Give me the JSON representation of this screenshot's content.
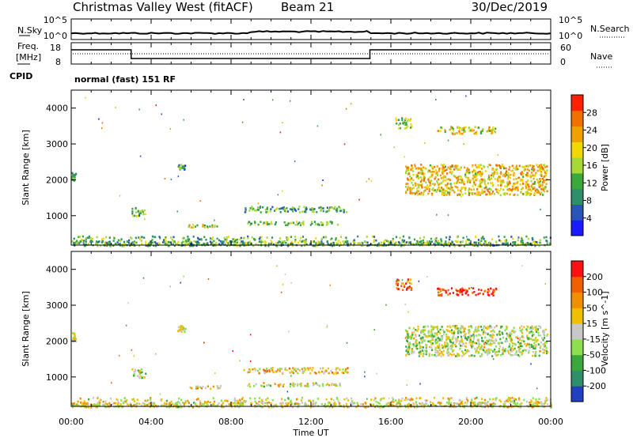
{
  "header": {
    "title": "Christmas Valley West (fitACF)",
    "beam": "Beam 21",
    "date": "30/Dec/2019"
  },
  "nsky": {
    "label": "N.Sky",
    "tick_top": "10^5",
    "tick_bottom": "10^0",
    "right_label": "N.Search",
    "right_tick_top": "10^5",
    "right_tick_bottom": "10^0"
  },
  "freq": {
    "label_line1": "Freq.",
    "label_line2": "[MHz]",
    "tick_top": "18",
    "tick_bottom": "8",
    "right_label": "Nave",
    "right_tick_top": "60",
    "right_tick_bottom": "0"
  },
  "cpid": {
    "label": "CPID",
    "value": "normal (fast) 151 RF"
  },
  "x_axis": {
    "label": "Time UT",
    "ticks": [
      "00:00",
      "04:00",
      "08:00",
      "12:00",
      "16:00",
      "20:00",
      "00:00"
    ]
  },
  "chart_data": [
    {
      "type": "heatmap",
      "panel": "power",
      "ylabel": "Slant Range [km]",
      "y_ticks": [
        1000,
        2000,
        3000,
        4000
      ],
      "ylim": [
        180,
        4500
      ],
      "xlim_hours": [
        0,
        24
      ],
      "colorbar": {
        "label": "Power [dB]",
        "ticks": [
          "4",
          "8",
          "12",
          "16",
          "20",
          "24",
          "28"
        ],
        "colors": [
          "#1a1aff",
          "#2a55b8",
          "#2f8f6a",
          "#3aa83a",
          "#a8d838",
          "#f0d800",
          "#f0a000",
          "#f07000",
          "#ff2000"
        ]
      },
      "regions": [
        {
          "t0": 0.0,
          "t1": 0.2,
          "r0": 2000,
          "r1": 2250,
          "level": 0.4
        },
        {
          "t0": 3.0,
          "t1": 3.7,
          "r0": 1000,
          "r1": 1250,
          "level": 0.35
        },
        {
          "t0": 5.3,
          "t1": 5.7,
          "r0": 2280,
          "r1": 2450,
          "level": 0.3
        },
        {
          "t0": 5.8,
          "t1": 7.5,
          "r0": 700,
          "r1": 780,
          "level": 0.55
        },
        {
          "t0": 8.6,
          "t1": 13.8,
          "r0": 1120,
          "r1": 1280,
          "level": 0.35
        },
        {
          "t0": 8.8,
          "t1": 13.5,
          "r0": 760,
          "r1": 860,
          "level": 0.45
        },
        {
          "t0": 16.2,
          "t1": 17.0,
          "r0": 3450,
          "r1": 3750,
          "level": 0.45
        },
        {
          "t0": 18.3,
          "t1": 21.3,
          "r0": 3300,
          "r1": 3500,
          "level": 0.6
        },
        {
          "t0": 16.7,
          "t1": 23.8,
          "r0": 1600,
          "r1": 2450,
          "level": 0.65
        },
        {
          "t0": 0.0,
          "t1": 24.0,
          "r0": 180,
          "r1": 450,
          "level": 0.4
        }
      ]
    },
    {
      "type": "heatmap",
      "panel": "velocity",
      "ylabel": "Slant Range [km]",
      "y_ticks": [
        1000,
        2000,
        3000,
        4000
      ],
      "ylim": [
        180,
        4500
      ],
      "xlim_hours": [
        0,
        24
      ],
      "colorbar": {
        "label": "Velocity [m s^-1]",
        "ticks": [
          "200",
          "100",
          "50",
          "15",
          "-15",
          "-50",
          "-100",
          "-200"
        ],
        "colors": [
          "#2040c0",
          "#2f8f6a",
          "#3aa83a",
          "#8ce050",
          "#c8c8c8",
          "#f0c000",
          "#f09000",
          "#f06000",
          "#ff1010"
        ]
      },
      "regions": [
        {
          "t0": 0.0,
          "t1": 0.2,
          "r0": 2000,
          "r1": 2250,
          "level": 0.45
        },
        {
          "t0": 3.0,
          "t1": 3.7,
          "r0": 1000,
          "r1": 1250,
          "level": 0.45
        },
        {
          "t0": 5.3,
          "t1": 5.7,
          "r0": 2280,
          "r1": 2450,
          "level": 0.45
        },
        {
          "t0": 5.8,
          "t1": 7.5,
          "r0": 700,
          "r1": 780,
          "level": 0.6
        },
        {
          "t0": 8.6,
          "t1": 13.8,
          "r0": 1120,
          "r1": 1280,
          "level": 0.6
        },
        {
          "t0": 8.8,
          "t1": 13.5,
          "r0": 760,
          "r1": 860,
          "level": 0.5
        },
        {
          "t0": 16.2,
          "t1": 17.0,
          "r0": 3450,
          "r1": 3750,
          "level": 0.8
        },
        {
          "t0": 18.3,
          "t1": 21.3,
          "r0": 3300,
          "r1": 3500,
          "level": 0.95
        },
        {
          "t0": 16.7,
          "t1": 23.8,
          "r0": 1600,
          "r1": 2450,
          "level": 0.45
        },
        {
          "t0": 0.0,
          "t1": 24.0,
          "r0": 180,
          "r1": 450,
          "level": 0.55
        }
      ]
    }
  ]
}
